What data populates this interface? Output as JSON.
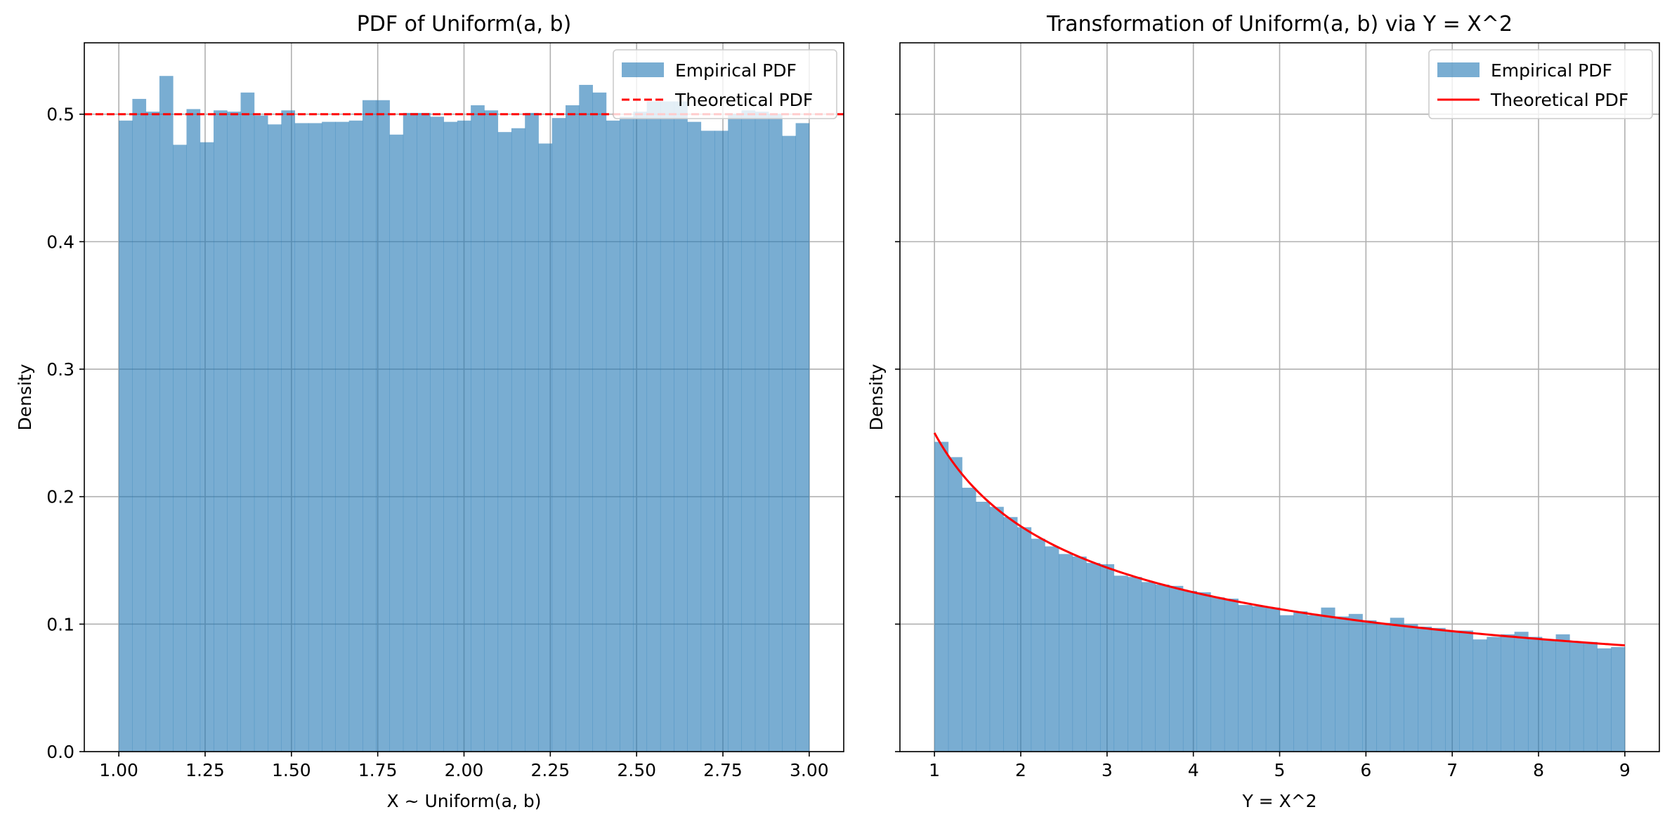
{
  "figure": {
    "background": "#ffffff",
    "grid_color": "#b0b0b0",
    "hist_color": "#1f77b4",
    "theory_color": "#ff0000"
  },
  "chart_data": [
    {
      "type": "bar",
      "title": "PDF of Uniform(a, b)",
      "xlabel": "X ~ Uniform(a, b)",
      "ylabel": "Density",
      "xlim": [
        0.9,
        3.1
      ],
      "ylim": [
        0,
        0.556
      ],
      "xticks": [
        1.0,
        1.25,
        1.5,
        1.75,
        2.0,
        2.25,
        2.5,
        2.75,
        3.0
      ],
      "xtick_labels": [
        "1.00",
        "1.25",
        "1.50",
        "1.75",
        "2.00",
        "2.25",
        "2.50",
        "2.75",
        "3.00"
      ],
      "yticks": [
        0.0,
        0.1,
        0.2,
        0.3,
        0.4,
        0.5
      ],
      "ytick_labels": [
        "0.0",
        "0.1",
        "0.2",
        "0.3",
        "0.4",
        "0.5"
      ],
      "grid": true,
      "legend": "top-right",
      "histogram": {
        "name": "Empirical PDF",
        "range": [
          1.0,
          3.0
        ],
        "values": [
          0.495,
          0.512,
          0.502,
          0.53,
          0.476,
          0.504,
          0.478,
          0.503,
          0.502,
          0.517,
          0.499,
          0.492,
          0.503,
          0.493,
          0.493,
          0.494,
          0.494,
          0.495,
          0.511,
          0.511,
          0.484,
          0.501,
          0.501,
          0.498,
          0.494,
          0.495,
          0.507,
          0.503,
          0.486,
          0.489,
          0.501,
          0.477,
          0.497,
          0.507,
          0.523,
          0.517,
          0.495,
          0.498,
          0.502,
          0.51,
          0.51,
          0.51,
          0.494,
          0.487,
          0.487,
          0.5,
          0.503,
          0.502,
          0.5,
          0.483,
          0.493
        ]
      },
      "theoretical": {
        "name": "Theoretical PDF",
        "style": "dashed",
        "y": 0.5
      }
    },
    {
      "type": "bar",
      "title": "Transformation of Uniform(a, b) via Y = X^2",
      "xlabel": "Y = X^2",
      "ylabel": "Density",
      "xlim": [
        0.6,
        9.4
      ],
      "ylim": [
        0,
        0.556
      ],
      "xticks": [
        1,
        2,
        3,
        4,
        5,
        6,
        7,
        8,
        9
      ],
      "xtick_labels": [
        "1",
        "2",
        "3",
        "4",
        "5",
        "6",
        "7",
        "8",
        "9"
      ],
      "yticks": [
        0.0,
        0.1,
        0.2,
        0.3,
        0.4,
        0.5
      ],
      "grid": true,
      "legend": "top-right",
      "histogram": {
        "name": "Empirical PDF",
        "range": [
          1,
          9
        ],
        "values": [
          0.243,
          0.231,
          0.207,
          0.196,
          0.192,
          0.184,
          0.176,
          0.167,
          0.161,
          0.155,
          0.153,
          0.148,
          0.147,
          0.138,
          0.137,
          0.133,
          0.131,
          0.13,
          0.126,
          0.125,
          0.121,
          0.12,
          0.115,
          0.114,
          0.113,
          0.107,
          0.11,
          0.107,
          0.113,
          0.106,
          0.108,
          0.103,
          0.101,
          0.105,
          0.1,
          0.098,
          0.097,
          0.095,
          0.095,
          0.088,
          0.09,
          0.092,
          0.094,
          0.09,
          0.088,
          0.092,
          0.086,
          0.086,
          0.081,
          0.082
        ]
      },
      "theoretical": {
        "name": "Theoretical PDF",
        "style": "solid",
        "formula": "1/(4*sqrt(y))",
        "range": [
          1,
          9
        ]
      }
    }
  ]
}
